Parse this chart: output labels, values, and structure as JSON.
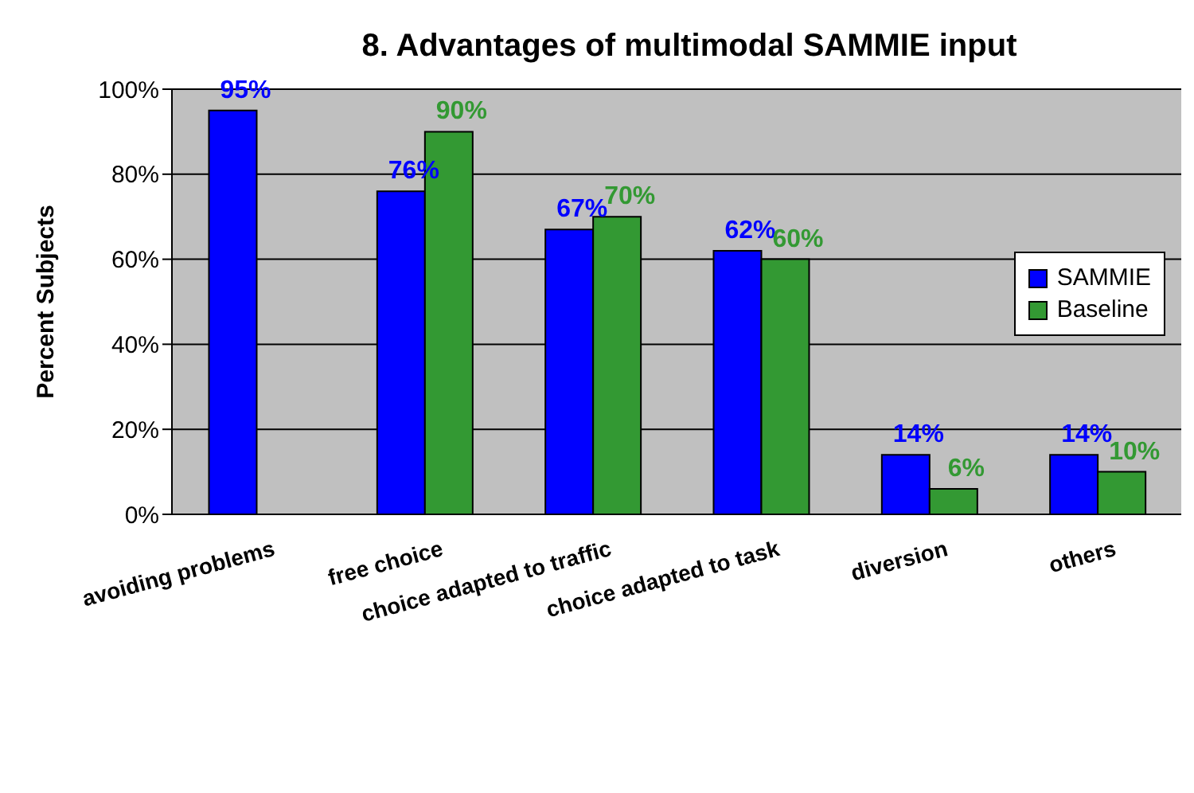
{
  "chart_data": {
    "type": "bar",
    "title": "8. Advantages of multimodal SAMMIE input",
    "ylabel": "Percent Subjects",
    "categories": [
      "avoiding problems",
      "free choice",
      "choice adapted to traffic",
      "choice adapted to task",
      "diversion",
      "others"
    ],
    "series": [
      {
        "name": "SAMMIE",
        "color": "#0000ff",
        "values": [
          95,
          76,
          67,
          62,
          14,
          14
        ],
        "value_labels": [
          "95%",
          "76%",
          "67%",
          "62%",
          "14%",
          "14%"
        ]
      },
      {
        "name": "Baseline",
        "color": "#339933",
        "values": [
          null,
          90,
          70,
          60,
          6,
          10
        ],
        "value_labels": [
          null,
          "90%",
          "70%",
          "60%",
          "6%",
          "10%"
        ]
      }
    ],
    "ylim": [
      0,
      100
    ],
    "yticks": [
      {
        "value": 0,
        "label": "0%"
      },
      {
        "value": 20,
        "label": "20%"
      },
      {
        "value": 40,
        "label": "40%"
      },
      {
        "value": 60,
        "label": "60%"
      },
      {
        "value": 80,
        "label": "80%"
      },
      {
        "value": 100,
        "label": "100%"
      }
    ],
    "grid": "y",
    "legend": "right"
  }
}
